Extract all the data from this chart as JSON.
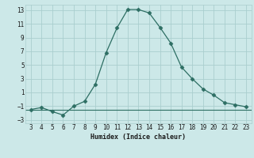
{
  "x": [
    3,
    4,
    5,
    6,
    7,
    8,
    9,
    10,
    11,
    12,
    13,
    14,
    15,
    16,
    17,
    18,
    19,
    20,
    21,
    22,
    23
  ],
  "y": [
    -1.5,
    -1.2,
    -1.8,
    -2.3,
    -1.0,
    -0.3,
    2.2,
    6.8,
    10.4,
    13.1,
    13.1,
    12.6,
    10.5,
    8.2,
    4.7,
    3.0,
    1.5,
    0.6,
    -0.5,
    -0.8,
    -1.1
  ],
  "xlabel": "Humidex (Indice chaleur)",
  "xlim_min": 2.5,
  "xlim_max": 23.5,
  "ylim_min": -3.5,
  "ylim_max": 13.8,
  "yticks": [
    -3,
    -1,
    1,
    3,
    5,
    7,
    9,
    11,
    13
  ],
  "xticks": [
    3,
    4,
    5,
    6,
    7,
    8,
    9,
    10,
    11,
    12,
    13,
    14,
    15,
    16,
    17,
    18,
    19,
    20,
    21,
    22,
    23
  ],
  "line_color": "#2d6e63",
  "marker": "D",
  "marker_size": 2.5,
  "bg_color": "#cce8e8",
  "grid_color": "#aacece",
  "font_color": "#1a1a1a",
  "hline_y": -1.5
}
